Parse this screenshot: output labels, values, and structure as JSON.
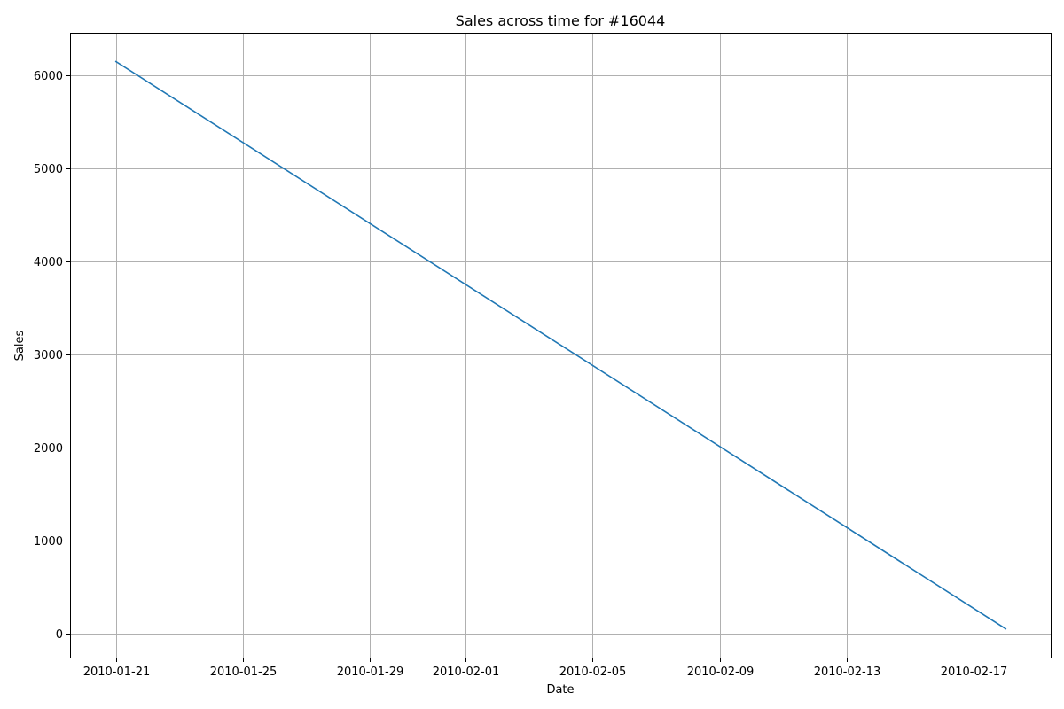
{
  "chart_data": {
    "type": "line",
    "title": "Sales across time for #16044",
    "xlabel": "Date",
    "ylabel": "Sales",
    "x_tick_labels": [
      "2010-01-21",
      "2010-01-25",
      "2010-01-29",
      "2010-02-01",
      "2010-02-05",
      "2010-02-09",
      "2010-02-13",
      "2010-02-17"
    ],
    "y_tick_values": [
      0,
      1000,
      2000,
      3000,
      4000,
      5000,
      6000
    ],
    "y_tick_labels": [
      "0",
      "1000",
      "2000",
      "3000",
      "4000",
      "5000",
      "6000"
    ],
    "xlim": [
      "2010-01-19T14:00",
      "2010-02-19T10:00"
    ],
    "ylim": [
      -260,
      6450
    ],
    "grid": true,
    "colors": {
      "line": "#1f77b4",
      "grid": "#b0b0b0"
    },
    "series": [
      {
        "x": [
          "2010-01-21",
          "2010-02-18"
        ],
        "y": [
          6150,
          50
        ]
      }
    ]
  }
}
